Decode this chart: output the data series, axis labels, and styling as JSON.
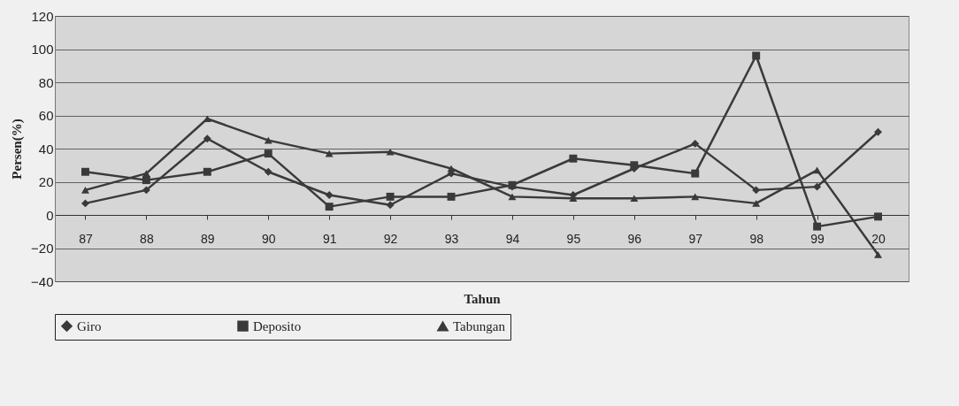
{
  "chart_data": {
    "type": "line",
    "xlabel": "Tahun",
    "ylabel": "Persen(%)",
    "categories": [
      "87",
      "88",
      "89",
      "90",
      "91",
      "92",
      "93",
      "94",
      "95",
      "96",
      "97",
      "98",
      "99",
      "20"
    ],
    "series": [
      {
        "name": "Giro",
        "color": "#3a3a3a",
        "marker": "diamond",
        "values": [
          7,
          15,
          46,
          26,
          12,
          6,
          25,
          17,
          12,
          28,
          43,
          15,
          17,
          50
        ]
      },
      {
        "name": "Deposito",
        "color": "#3a3a3a",
        "marker": "square",
        "values": [
          26,
          21,
          26,
          37,
          5,
          11,
          11,
          18,
          34,
          30,
          25,
          96,
          -7,
          -1
        ]
      },
      {
        "name": "Tabungan",
        "color": "#3a3a3a",
        "marker": "triangle",
        "values": [
          15,
          25,
          58,
          45,
          37,
          38,
          28,
          11,
          10,
          10,
          11,
          7,
          27,
          -24
        ]
      }
    ],
    "ylim": [
      -40,
      120
    ],
    "yticks": [
      -40,
      -20,
      0,
      20,
      40,
      60,
      80,
      100,
      120
    ],
    "grid": "y",
    "legend": "bottom",
    "line_style": "solid"
  }
}
